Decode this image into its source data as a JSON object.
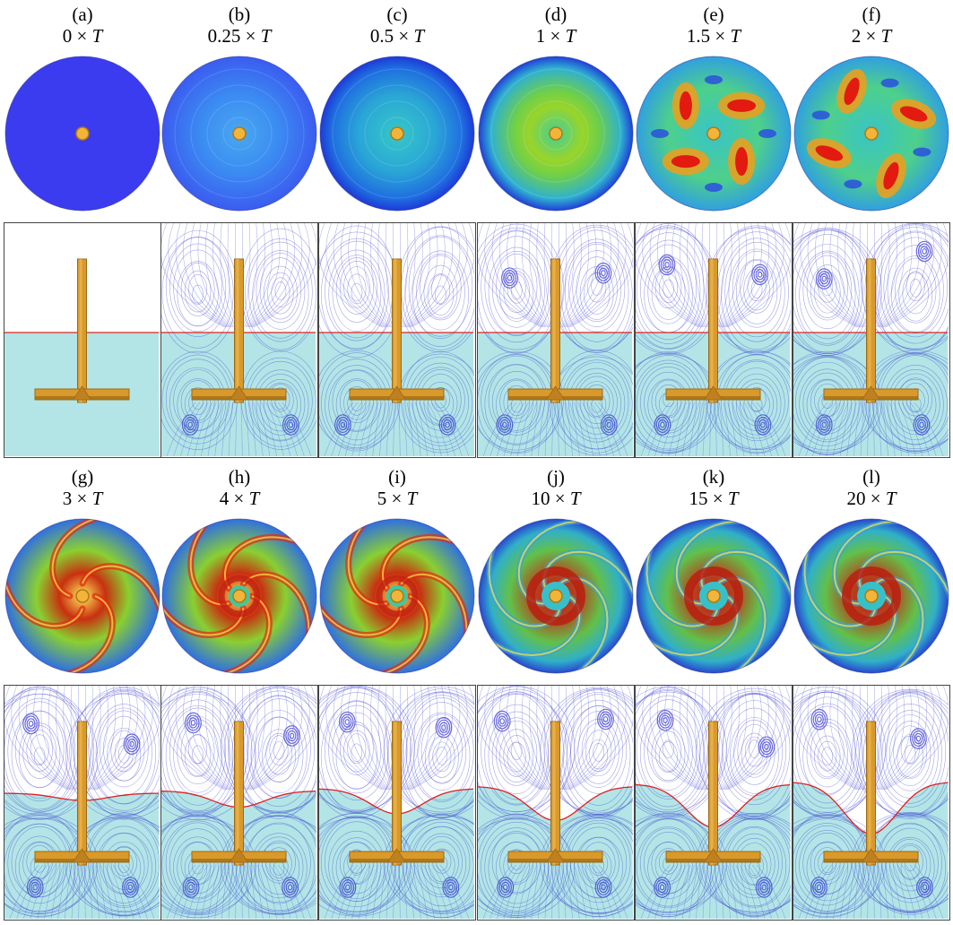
{
  "figure": {
    "rows": [
      {
        "panels": [
          {
            "label": "(a)",
            "time_value": "0",
            "time_unit": "T",
            "stage": 0
          },
          {
            "label": "(b)",
            "time_value": "0.25",
            "time_unit": "T",
            "stage": 1
          },
          {
            "label": "(c)",
            "time_value": "0.5",
            "time_unit": "T",
            "stage": 2
          },
          {
            "label": "(d)",
            "time_value": "1",
            "time_unit": "T",
            "stage": 3
          },
          {
            "label": "(e)",
            "time_value": "1.5",
            "time_unit": "T",
            "stage": 4
          },
          {
            "label": "(f)",
            "time_value": "2",
            "time_unit": "T",
            "stage": 5
          }
        ]
      },
      {
        "panels": [
          {
            "label": "(g)",
            "time_value": "3",
            "time_unit": "T",
            "stage": 6
          },
          {
            "label": "(h)",
            "time_value": "4",
            "time_unit": "T",
            "stage": 7
          },
          {
            "label": "(i)",
            "time_value": "5",
            "time_unit": "T",
            "stage": 8
          },
          {
            "label": "(j)",
            "time_value": "10",
            "time_unit": "T",
            "stage": 9
          },
          {
            "label": "(k)",
            "time_value": "15",
            "time_unit": "T",
            "stage": 10
          },
          {
            "label": "(l)",
            "time_value": "20",
            "time_unit": "T",
            "stage": 11
          }
        ]
      }
    ],
    "times_symbol": "×",
    "colors": {
      "liquid": "#b3e5e6",
      "streamline": "#2222cc",
      "interface": "#e02020",
      "impeller": "#d99a2b",
      "impeller_dark": "#9a6a16",
      "hub": "#f3b43a",
      "low": "#3b3bf0",
      "mid": "#2fd0a0",
      "high": "#e81010"
    }
  }
}
